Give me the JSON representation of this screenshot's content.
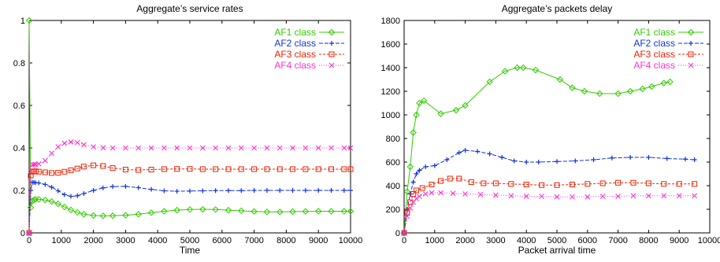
{
  "chart_data": [
    {
      "type": "line",
      "title": "Aggregate’s service rates",
      "xlabel": "Time",
      "ylabel": "",
      "xlim": [
        0,
        10000
      ],
      "ylim": [
        0,
        1
      ],
      "xticks": [
        "0",
        "1000",
        "2000",
        "3000",
        "4000",
        "5000",
        "6000",
        "7000",
        "8000",
        "9000",
        "10000"
      ],
      "yticks": [
        "0",
        "0.2",
        "0.4",
        "0.6",
        "0.8",
        "1"
      ],
      "legend_position": "top-right",
      "series": [
        {
          "name": "AF1 class",
          "color": "#33cc00",
          "marker": "diamond",
          "x": [
            0,
            50,
            100,
            150,
            200,
            300,
            500,
            700,
            900,
            1100,
            1300,
            1500,
            1700,
            2000,
            2300,
            2600,
            3000,
            3400,
            3800,
            4200,
            4600,
            5000,
            5400,
            5800,
            6200,
            6600,
            7000,
            7400,
            7800,
            8200,
            8600,
            9000,
            9400,
            9800,
            10000
          ],
          "y": [
            1,
            0.12,
            0.15,
            0.155,
            0.158,
            0.158,
            0.155,
            0.148,
            0.137,
            0.122,
            0.108,
            0.097,
            0.088,
            0.082,
            0.08,
            0.081,
            0.083,
            0.088,
            0.095,
            0.102,
            0.107,
            0.11,
            0.111,
            0.11,
            0.107,
            0.104,
            0.101,
            0.099,
            0.099,
            0.1,
            0.101,
            0.102,
            0.102,
            0.102,
            0.102
          ]
        },
        {
          "name": "AF2 class",
          "color": "#1133dd",
          "marker": "plus",
          "x": [
            0,
            50,
            100,
            150,
            200,
            300,
            500,
            700,
            900,
            1100,
            1300,
            1500,
            1700,
            2000,
            2300,
            2600,
            3000,
            3400,
            3800,
            4200,
            4600,
            5000,
            5400,
            5800,
            6200,
            6600,
            7000,
            7400,
            7800,
            8200,
            8600,
            9000,
            9400,
            9800,
            10000
          ],
          "y": [
            0,
            0.2,
            0.238,
            0.238,
            0.236,
            0.235,
            0.228,
            0.215,
            0.198,
            0.18,
            0.172,
            0.175,
            0.185,
            0.2,
            0.212,
            0.218,
            0.219,
            0.213,
            0.205,
            0.198,
            0.196,
            0.197,
            0.198,
            0.199,
            0.199,
            0.199,
            0.2,
            0.2,
            0.2,
            0.2,
            0.2,
            0.2,
            0.2,
            0.2,
            0.2
          ]
        },
        {
          "name": "AF3 class",
          "color": "#ee2200",
          "marker": "square",
          "x": [
            0,
            50,
            100,
            150,
            200,
            300,
            500,
            700,
            900,
            1100,
            1300,
            1500,
            1700,
            2000,
            2300,
            2600,
            3000,
            3400,
            3800,
            4200,
            4600,
            5000,
            5400,
            5800,
            6200,
            6600,
            7000,
            7400,
            7800,
            8200,
            8600,
            9000,
            9400,
            9800,
            10000
          ],
          "y": [
            0,
            0.27,
            0.288,
            0.29,
            0.29,
            0.288,
            0.285,
            0.282,
            0.283,
            0.288,
            0.295,
            0.303,
            0.312,
            0.318,
            0.315,
            0.305,
            0.298,
            0.296,
            0.298,
            0.3,
            0.301,
            0.301,
            0.3,
            0.3,
            0.3,
            0.3,
            0.3,
            0.3,
            0.3,
            0.3,
            0.3,
            0.3,
            0.3,
            0.3,
            0.3
          ]
        },
        {
          "name": "AF4 class",
          "color": "#ff33cc",
          "marker": "cross",
          "x": [
            0,
            50,
            100,
            150,
            200,
            300,
            500,
            700,
            900,
            1100,
            1300,
            1500,
            1700,
            2000,
            2300,
            2600,
            3000,
            3400,
            3800,
            4200,
            4600,
            5000,
            5400,
            5800,
            6200,
            6600,
            7000,
            7400,
            7800,
            8200,
            8600,
            9000,
            9400,
            9800,
            10000
          ],
          "y": [
            0,
            0.29,
            0.32,
            0.322,
            0.322,
            0.325,
            0.34,
            0.375,
            0.405,
            0.422,
            0.428,
            0.425,
            0.415,
            0.405,
            0.401,
            0.4,
            0.4,
            0.4,
            0.4,
            0.4,
            0.4,
            0.4,
            0.4,
            0.4,
            0.4,
            0.4,
            0.4,
            0.4,
            0.4,
            0.4,
            0.4,
            0.4,
            0.4,
            0.4,
            0.4
          ]
        }
      ]
    },
    {
      "type": "line",
      "title": "Aggregate’s packets delay",
      "xlabel": "Packet arrival time",
      "ylabel": "",
      "xlim": [
        0,
        10000
      ],
      "ylim": [
        0,
        1800
      ],
      "xticks": [
        "0",
        "1000",
        "2000",
        "3000",
        "4000",
        "5000",
        "6000",
        "7000",
        "8000",
        "9000",
        "10000"
      ],
      "yticks": [
        "0",
        "200",
        "400",
        "600",
        "800",
        "1000",
        "1200",
        "1400",
        "1600",
        "1800"
      ],
      "legend_position": "top-right",
      "series": [
        {
          "name": "AF1 class",
          "color": "#33cc00",
          "marker": "diamond",
          "x": [
            0,
            100,
            200,
            300,
            400,
            500,
            650,
            1200,
            1700,
            2000,
            2800,
            3300,
            3700,
            3900,
            4300,
            5100,
            5500,
            5900,
            6400,
            7000,
            7400,
            7800,
            8100,
            8500,
            8700
          ],
          "y": [
            0,
            350,
            560,
            850,
            1000,
            1100,
            1120,
            1010,
            1040,
            1080,
            1280,
            1370,
            1400,
            1400,
            1380,
            1300,
            1230,
            1200,
            1180,
            1180,
            1200,
            1220,
            1240,
            1270,
            1280
          ]
        },
        {
          "name": "AF2 class",
          "color": "#1133dd",
          "marker": "plus",
          "x": [
            0,
            100,
            200,
            300,
            400,
            500,
            700,
            1000,
            1400,
            1800,
            2000,
            2400,
            2800,
            3200,
            3600,
            4000,
            4400,
            5000,
            5600,
            6200,
            6800,
            7400,
            8000,
            8600,
            9200,
            9500
          ],
          "y": [
            0,
            200,
            330,
            430,
            500,
            530,
            560,
            570,
            620,
            680,
            700,
            690,
            670,
            640,
            610,
            600,
            600,
            605,
            610,
            620,
            635,
            640,
            640,
            630,
            625,
            620
          ]
        },
        {
          "name": "AF3 class",
          "color": "#ee2200",
          "marker": "square",
          "x": [
            0,
            100,
            200,
            300,
            400,
            600,
            900,
            1200,
            1500,
            1800,
            2200,
            2600,
            3000,
            3500,
            4000,
            4500,
            5000,
            5500,
            6000,
            6500,
            7000,
            7500,
            8000,
            8500,
            9000,
            9500
          ],
          "y": [
            0,
            170,
            260,
            330,
            360,
            380,
            410,
            440,
            460,
            460,
            430,
            420,
            420,
            415,
            410,
            405,
            405,
            410,
            415,
            420,
            425,
            425,
            420,
            415,
            415,
            415
          ]
        },
        {
          "name": "AF4 class",
          "color": "#ff33cc",
          "marker": "cross",
          "x": [
            0,
            100,
            200,
            300,
            400,
            500,
            700,
            900,
            1200,
            1600,
            2000,
            2500,
            3000,
            3500,
            4000,
            4500,
            5000,
            5500,
            6000,
            6500,
            7000,
            7500,
            8000,
            8500,
            9000,
            9500
          ],
          "y": [
            0,
            140,
            210,
            260,
            290,
            310,
            330,
            340,
            340,
            335,
            330,
            325,
            320,
            315,
            310,
            310,
            305,
            305,
            305,
            310,
            310,
            315,
            315,
            315,
            315,
            315
          ]
        }
      ]
    }
  ]
}
